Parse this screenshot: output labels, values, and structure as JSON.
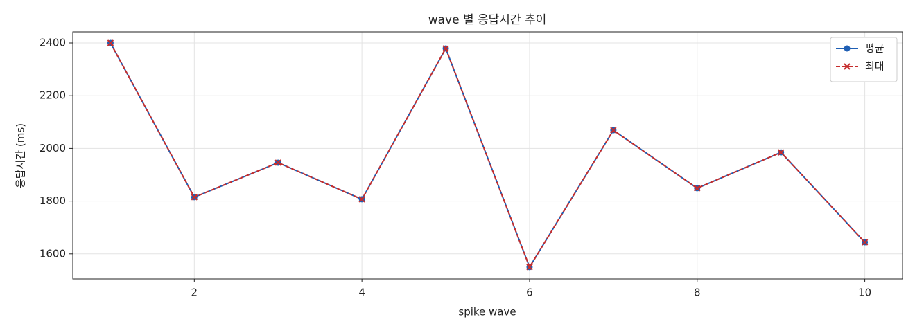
{
  "chart_data": {
    "type": "line",
    "title": "wave 별 응답시간 추이",
    "xlabel": "spike wave",
    "ylabel": "응답시간 (ms)",
    "x": [
      1,
      2,
      3,
      4,
      5,
      6,
      7,
      8,
      9,
      10
    ],
    "series": [
      {
        "name": "평균",
        "color": "#1f5fb4",
        "marker": "o",
        "linestyle": "solid",
        "values": [
          2400,
          1815,
          1946,
          1807,
          2379,
          1550,
          2069,
          1849,
          1985,
          1644
        ]
      },
      {
        "name": "최대",
        "color": "#c62d2d",
        "marker": "x",
        "linestyle": "dashed",
        "values": [
          2400,
          1815,
          1946,
          1807,
          2379,
          1550,
          2069,
          1849,
          1985,
          1644
        ]
      }
    ],
    "xlim": [
      0.55,
      10.45
    ],
    "ylim": [
      1505,
      2442
    ],
    "xticks": [
      2,
      4,
      6,
      8,
      10
    ],
    "yticks": [
      1600,
      1800,
      2000,
      2200,
      2400
    ],
    "grid": true,
    "legend": "upper right"
  }
}
